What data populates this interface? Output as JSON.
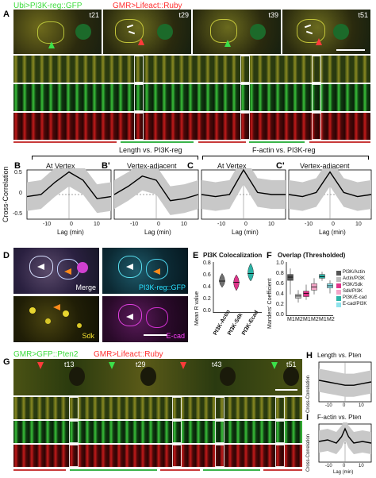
{
  "panels": {
    "A": {
      "label": "A",
      "title_green": "Ubi>PI3K-reg::GFP",
      "title_red": "GMR>Lifeact::Ruby",
      "timestamps": [
        "t21",
        "t29",
        "t39",
        "t51"
      ],
      "bottom_green_label": "Length vs. PI3K-reg",
      "bottom_red_label": "F-actin vs. PI3K-reg"
    },
    "B": {
      "label": "B",
      "title": "At Vertex"
    },
    "B_prime": {
      "label": "B'",
      "title": "Vertex-adjacent"
    },
    "C": {
      "label": "C",
      "title": "At Vertex"
    },
    "C_prime": {
      "label": "C'",
      "title": "Vertex-adjacent"
    },
    "cc_axis": {
      "ylabel": "Cross-Correlation",
      "xlabel": "Lag (min)",
      "yticks": [
        "0.5",
        "0",
        "-0.5"
      ],
      "xticks": [
        "-10",
        "0",
        "10"
      ]
    },
    "D": {
      "label": "D",
      "merge": "Merge",
      "pi3k": "PI3K-reg::GFP",
      "sdk": "Sdk",
      "ecad": "E-cad"
    },
    "E": {
      "label": "E",
      "title": "PI3K Colocalization",
      "ylabel": "Mean R value",
      "yticks": [
        "0.8",
        "0.6",
        "0.4",
        "0.2",
        "0.0"
      ],
      "categories": [
        "PI3K-Actin",
        "PI3K-Sdk",
        "PI3K-Ecad"
      ]
    },
    "F": {
      "label": "F",
      "title": "Overlap (Thresholded)",
      "ylabel": "Manders' Coefficient",
      "yticks": [
        "1.0",
        "0.8",
        "0.6",
        "0.4",
        "0.2",
        "0.0"
      ],
      "xticks": [
        "M1",
        "M2",
        "M1",
        "M2",
        "M1",
        "M2"
      ],
      "legend": [
        {
          "name": "PI3K/Actin",
          "color": "#555555"
        },
        {
          "name": "Actin/PI3K",
          "color": "#bdbdbd"
        },
        {
          "name": "PI3K/Sdk",
          "color": "#e0338a"
        },
        {
          "name": "Sdk/PI3K",
          "color": "#f4a6c8"
        },
        {
          "name": "PI3K/E-cad",
          "color": "#2ab3a6"
        },
        {
          "name": "E-cad/PI3K",
          "color": "#8fe3ec"
        }
      ]
    },
    "G": {
      "label": "G",
      "title_green": "GMR>GFP::Pten2",
      "title_red": "GMR>Lifeact::Ruby",
      "timestamps": [
        "t13",
        "t29",
        "t43",
        "t51"
      ]
    },
    "H": {
      "label": "H",
      "title": "Length vs. Pten"
    },
    "I": {
      "label": "I",
      "title": "F-actin vs. Pten"
    }
  },
  "chart_data": [
    {
      "id": "B",
      "type": "line",
      "title": "At Vertex",
      "x": [
        -15,
        -10,
        -5,
        0,
        5,
        10,
        15
      ],
      "series": [
        {
          "values": [
            -0.05,
            0.0,
            0.3,
            0.55,
            0.35,
            -0.1,
            -0.05
          ]
        }
      ],
      "xlim": [
        -15,
        15
      ],
      "ylim": [
        -0.6,
        0.6
      ],
      "ylabel": "Cross-Correlation",
      "xlabel": "Lag (min)"
    },
    {
      "id": "B'",
      "type": "line",
      "title": "Vertex-adjacent",
      "x": [
        -15,
        -10,
        -5,
        0,
        5,
        10,
        15
      ],
      "series": [
        {
          "values": [
            0.0,
            0.2,
            0.45,
            0.35,
            -0.15,
            -0.1,
            0.0
          ]
        }
      ],
      "xlim": [
        -15,
        15
      ],
      "ylim": [
        -0.6,
        0.6
      ],
      "xlabel": "Lag (min)"
    },
    {
      "id": "C",
      "type": "line",
      "title": "At Vertex",
      "x": [
        -15,
        -10,
        -5,
        0,
        5,
        10,
        15
      ],
      "series": [
        {
          "values": [
            0.0,
            -0.05,
            0.0,
            0.6,
            0.05,
            0.0,
            0.0
          ]
        }
      ],
      "xlim": [
        -15,
        15
      ],
      "ylim": [
        -0.6,
        0.6
      ],
      "xlabel": "Lag (min)"
    },
    {
      "id": "C'",
      "type": "line",
      "title": "Vertex-adjacent",
      "x": [
        -15,
        -10,
        -5,
        0,
        5,
        10,
        15
      ],
      "series": [
        {
          "values": [
            0.0,
            -0.05,
            0.05,
            0.55,
            0.05,
            -0.05,
            0.0
          ]
        }
      ],
      "xlim": [
        -15,
        15
      ],
      "ylim": [
        -0.6,
        0.6
      ],
      "xlabel": "Lag (min)"
    },
    {
      "id": "E",
      "type": "violin",
      "title": "PI3K Colocalization",
      "categories": [
        "PI3K-Actin",
        "PI3K-Sdk",
        "PI3K-Ecad"
      ],
      "medians": [
        0.5,
        0.48,
        0.62
      ],
      "ranges": [
        [
          0.4,
          0.62
        ],
        [
          0.35,
          0.6
        ],
        [
          0.5,
          0.78
        ]
      ],
      "colors": [
        "#707070",
        "#e0338a",
        "#2ab3a6"
      ],
      "ylim": [
        0,
        0.8
      ],
      "ylabel": "Mean R value"
    },
    {
      "id": "F",
      "type": "box",
      "title": "Overlap (Thresholded)",
      "categories": [
        "M1",
        "M2",
        "M1",
        "M2",
        "M1",
        "M2"
      ],
      "boxes": [
        {
          "name": "PI3K/Actin",
          "min": 0.4,
          "q1": 0.66,
          "median": 0.72,
          "q3": 0.77,
          "max": 0.88,
          "color": "#555555"
        },
        {
          "name": "Actin/PI3K",
          "min": 0.25,
          "q1": 0.33,
          "median": 0.37,
          "q3": 0.4,
          "max": 0.48,
          "color": "#bdbdbd"
        },
        {
          "name": "PI3K/Sdk",
          "min": 0.3,
          "q1": 0.36,
          "median": 0.42,
          "q3": 0.46,
          "max": 0.58,
          "color": "#e0338a"
        },
        {
          "name": "Sdk/PI3K",
          "min": 0.4,
          "q1": 0.48,
          "median": 0.54,
          "q3": 0.6,
          "max": 0.7,
          "color": "#f4a6c8"
        },
        {
          "name": "PI3K/E-cad",
          "min": 0.65,
          "q1": 0.7,
          "median": 0.73,
          "q3": 0.77,
          "max": 0.82,
          "color": "#2ab3a6"
        },
        {
          "name": "E-cad/PI3K",
          "min": 0.42,
          "q1": 0.52,
          "median": 0.56,
          "q3": 0.6,
          "max": 0.66,
          "color": "#8fe3ec"
        }
      ],
      "ylim": [
        0,
        1.0
      ],
      "ylabel": "Manders' Coefficient"
    },
    {
      "id": "H",
      "type": "line",
      "title": "Length vs. Pten",
      "x": [
        -15,
        -10,
        -5,
        0,
        5,
        10,
        15
      ],
      "series": [
        {
          "values": [
            0.05,
            0.0,
            -0.05,
            -0.1,
            -0.1,
            -0.05,
            0.0
          ]
        }
      ],
      "xlim": [
        -15,
        15
      ],
      "ylim": [
        -0.6,
        0.6
      ],
      "ylabel": "Cross-Correlation",
      "xlabel": "Lag (min)"
    },
    {
      "id": "I",
      "type": "line",
      "title": "F-actin vs. Pten",
      "x": [
        -15,
        -10,
        -5,
        -2,
        0,
        2,
        5,
        10,
        15
      ],
      "series": [
        {
          "values": [
            0.05,
            0.1,
            0.0,
            0.2,
            0.45,
            0.2,
            0.0,
            0.05,
            0.0
          ]
        }
      ],
      "xlim": [
        -15,
        15
      ],
      "ylim": [
        -0.6,
        0.6
      ],
      "ylabel": "Cross-Correlation",
      "xlabel": "Lag (min)"
    }
  ]
}
